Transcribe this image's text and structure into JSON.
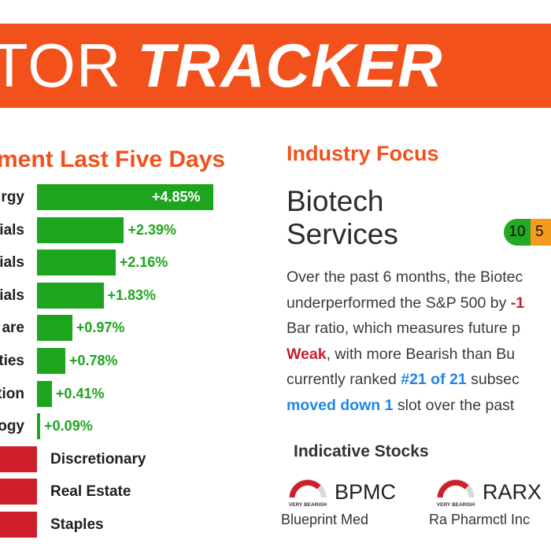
{
  "banner": {
    "title_part1": "TOR",
    "title_part2": "TRACKER"
  },
  "left_heading": "ment Last Five Days",
  "colors": {
    "brand": "#f3511b",
    "positive": "#1da51d",
    "negative": "#cf1f2c",
    "rank_green": "#25a826",
    "rank_orange": "#f59b1b",
    "blue": "#1e88e5"
  },
  "chart_data": {
    "type": "bar",
    "title": "ment Last Five Days",
    "categories": [
      "rgy",
      "ials",
      "ials",
      "ials",
      "are",
      "ties",
      "tion",
      "ogy",
      "Discretionary",
      "Real Estate",
      "Staples"
    ],
    "values": [
      4.85,
      2.39,
      2.16,
      1.83,
      0.97,
      0.78,
      0.41,
      0.09,
      null,
      null,
      null
    ],
    "labels": [
      "+4.85%",
      "+2.39%",
      "+2.16%",
      "+1.83%",
      "+0.97%",
      "+0.78%",
      "+0.41%",
      "+0.09%",
      "",
      "",
      ""
    ],
    "negative_categories": [
      "Discretionary",
      "Real Estate",
      "Staples"
    ],
    "xlabel": "",
    "ylabel": ""
  },
  "industry": {
    "heading": "Industry Focus",
    "name_line1": "Biotech",
    "name_line2": "Services",
    "rank_green": "10",
    "rank_orange": "5",
    "desc": {
      "l1": "Over the past 6 months, the Biotec",
      "l2a": "underperformed the S&P 500 by ",
      "l2b": "-1",
      "l3": "Bar ratio, which measures future p",
      "l4a": "Weak",
      "l4b": ", with more Bearish than Bu",
      "l5a": "currently ranked ",
      "l5b": "#21 of 21",
      "l5c": " subsec",
      "l6a": "moved down 1",
      "l6b": " slot over the past"
    }
  },
  "stocks": {
    "heading": "Indicative Stocks",
    "items": [
      {
        "rating": "VERY BEARISH",
        "ticker": "BPMC",
        "company": "Blueprint Med"
      },
      {
        "rating": "VERY BEARISH",
        "ticker": "RARX",
        "company": "Ra Pharmctl Inc"
      }
    ]
  }
}
